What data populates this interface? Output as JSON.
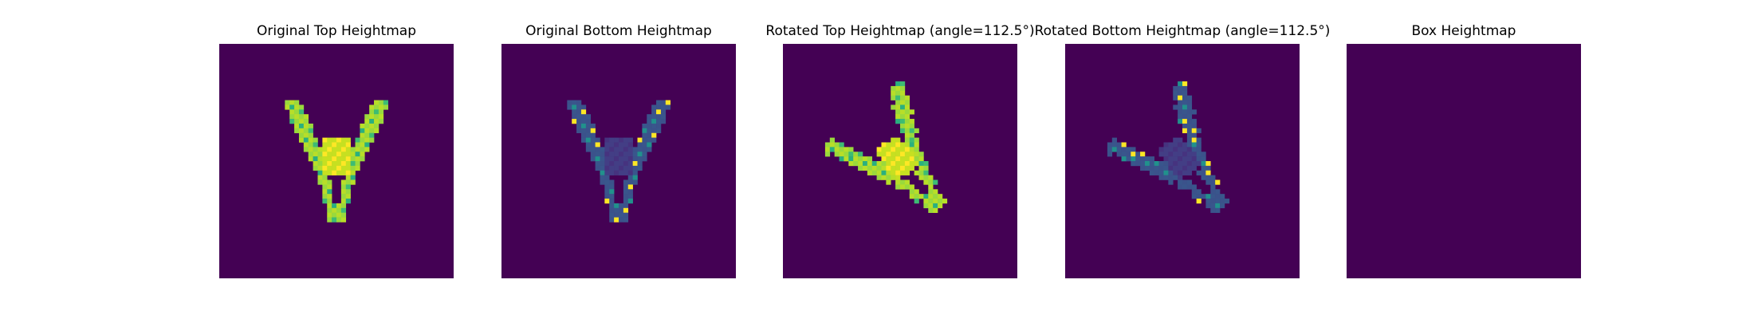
{
  "chart_data": [
    {
      "type": "heatmap",
      "title": "Original Top Heightmap",
      "background_color": "#440154",
      "shape": "v-shape-upright",
      "colors": [
        "#9ad93c",
        "#b8de29",
        "#c6e021",
        "#fde725",
        "#2ab07f",
        "#3dbc74"
      ],
      "grid": false
    },
    {
      "type": "heatmap",
      "title": "Original Bottom Heightmap",
      "background_color": "#440154",
      "shape": "v-shape-upright",
      "colors": [
        "#3b528b",
        "#39568c",
        "#433e85",
        "#46337f",
        "#21918c",
        "#fde725"
      ],
      "grid": false
    },
    {
      "type": "heatmap",
      "title": "Rotated Top Heightmap (angle=112.5°)",
      "background_color": "#440154",
      "shape": "v-shape-rotated",
      "colors": [
        "#9ad93c",
        "#b8de29",
        "#c6e021",
        "#fde725",
        "#2ab07f",
        "#3dbc74"
      ],
      "grid": false
    },
    {
      "type": "heatmap",
      "title": "Rotated Bottom Heightmap (angle=112.5°)",
      "background_color": "#440154",
      "shape": "v-shape-rotated",
      "colors": [
        "#3b528b",
        "#39568c",
        "#433e85",
        "#46337f",
        "#21918c",
        "#fde725"
      ],
      "grid": false
    },
    {
      "type": "heatmap",
      "title": "Box Heightmap",
      "background_color": "#440154",
      "shape": "empty",
      "colors": [],
      "grid": false
    }
  ]
}
